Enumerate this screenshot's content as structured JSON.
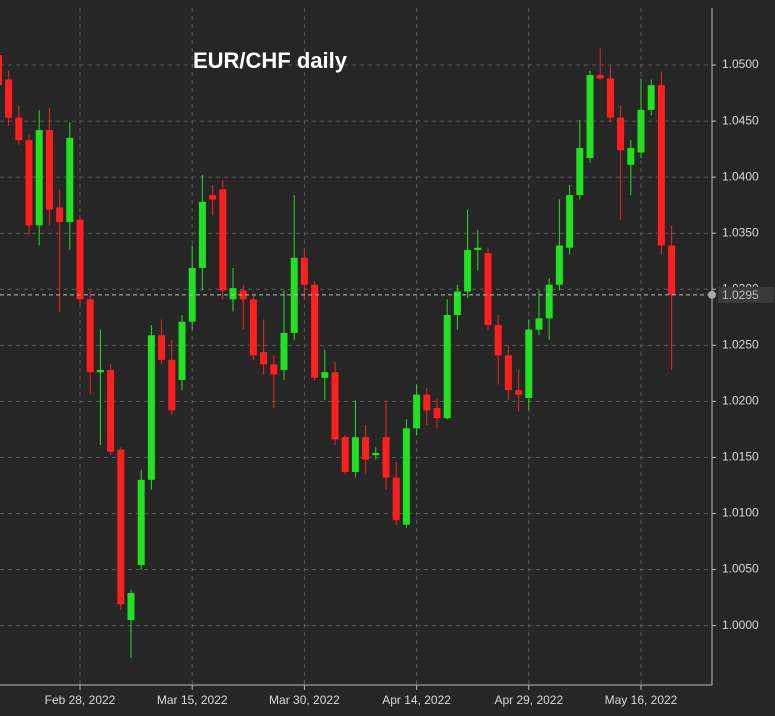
{
  "chart_data": {
    "type": "candlestick",
    "title": "EUR/CHF daily",
    "categories": [
      null,
      null,
      null,
      null,
      null,
      null,
      null,
      null,
      "Feb 28, 2022",
      null,
      null,
      null,
      null,
      null,
      null,
      null,
      null,
      null,
      null,
      "Mar 15, 2022",
      null,
      null,
      null,
      null,
      null,
      null,
      null,
      null,
      null,
      null,
      "Mar 30, 2022",
      null,
      null,
      null,
      null,
      null,
      null,
      null,
      null,
      null,
      null,
      "Apr 14, 2022",
      null,
      null,
      null,
      null,
      null,
      null,
      null,
      null,
      null,
      null,
      "Apr 29, 2022",
      null,
      null,
      null,
      null,
      null,
      null,
      null,
      null,
      null,
      null,
      "May 16, 2022",
      null,
      null,
      null
    ],
    "open": [
      1.0509,
      1.0487,
      1.0453,
      1.0433,
      1.0357,
      1.0442,
      1.0373,
      1.036,
      1.0362,
      1.0291,
      1.0226,
      1.0228,
      1.0157,
      1.0005,
      1.0054,
      1.013,
      1.0259,
      1.0237,
      1.0219,
      1.0271,
      1.0319,
      1.0384,
      1.0389,
      1.0291,
      1.0299,
      1.0291,
      1.0244,
      1.0233,
      1.0228,
      1.0261,
      1.0328,
      1.0304,
      1.0221,
      1.0226,
      1.0168,
      1.0137,
      1.0168,
      1.0152,
      1.0168,
      1.0132,
      1.009,
      1.0176,
      1.0206,
      1.0194,
      1.0185,
      1.0277,
      1.0298,
      1.0335,
      1.0332,
      1.0268,
      1.0241,
      1.021,
      1.0203,
      1.0264,
      1.0274,
      1.0304,
      1.0337,
      1.0384,
      1.0417,
      1.0491,
      1.0488,
      1.0453,
      1.0411,
      1.0422,
      1.046,
      1.0482,
      1.0339
    ],
    "high": [
      1.0513,
      1.0495,
      1.0464,
      1.0438,
      1.046,
      1.0462,
      1.0389,
      1.0449,
      1.0366,
      1.0299,
      1.0264,
      1.0233,
      1.0159,
      1.0032,
      1.0139,
      1.0268,
      1.0273,
      1.0255,
      1.0277,
      1.0339,
      1.0402,
      1.0393,
      1.0397,
      1.0319,
      1.0304,
      1.0295,
      1.0273,
      1.0241,
      1.0299,
      1.0384,
      1.0335,
      1.0307,
      1.0246,
      1.0235,
      1.017,
      1.0201,
      1.0179,
      1.0159,
      1.0201,
      1.0146,
      1.0184,
      1.0215,
      1.0212,
      1.0203,
      1.0291,
      1.0304,
      1.0371,
      1.0353,
      1.0337,
      1.0277,
      1.025,
      1.0228,
      1.0273,
      1.0299,
      1.031,
      1.038,
      1.0393,
      1.0451,
      1.0495,
      1.0515,
      1.05,
      1.0464,
      1.0433,
      1.0488,
      1.0487,
      1.0494,
      1.0357
    ],
    "low": [
      1.0478,
      1.0446,
      1.0429,
      1.0348,
      1.0339,
      1.0357,
      1.028,
      1.0335,
      1.0286,
      1.0206,
      1.0161,
      1.0152,
      1.0014,
      0.9971,
      1.005,
      1.0121,
      1.0233,
      1.0188,
      1.021,
      1.0264,
      1.0299,
      1.0366,
      1.0291,
      1.028,
      1.0264,
      1.0237,
      1.0224,
      1.0194,
      1.0219,
      1.0255,
      1.0291,
      1.0219,
      1.0201,
      1.0161,
      1.0135,
      1.0132,
      1.0135,
      1.0148,
      1.0121,
      1.009,
      1.0087,
      1.017,
      1.0179,
      1.0176,
      1.0184,
      1.0264,
      1.0292,
      1.0317,
      1.0264,
      1.0215,
      1.0201,
      1.0191,
      1.0192,
      1.0259,
      1.0255,
      1.0299,
      1.0331,
      1.038,
      1.0413,
      1.0487,
      1.0449,
      1.0362,
      1.0384,
      1.0417,
      1.0455,
      1.0331,
      1.0228
    ],
    "close": [
      1.0482,
      1.0453,
      1.0433,
      1.0357,
      1.0442,
      1.0371,
      1.036,
      1.0435,
      1.0291,
      1.0226,
      1.0228,
      1.0155,
      1.0019,
      1.0029,
      1.013,
      1.0259,
      1.0237,
      1.0192,
      1.0271,
      1.0319,
      1.0378,
      1.038,
      1.0299,
      1.0301,
      1.0291,
      1.0241,
      1.0233,
      1.0224,
      1.0261,
      1.0328,
      1.0304,
      1.0221,
      1.0226,
      1.0166,
      1.0137,
      1.0168,
      1.0148,
      1.0154,
      1.0132,
      1.0094,
      1.0176,
      1.0206,
      1.0192,
      1.0185,
      1.0277,
      1.0298,
      1.0335,
      1.0337,
      1.0268,
      1.0241,
      1.021,
      1.0206,
      1.0264,
      1.0274,
      1.0304,
      1.0339,
      1.0384,
      1.0426,
      1.0491,
      1.0488,
      1.0453,
      1.0424,
      1.0426,
      1.046,
      1.0482,
      1.0339,
      1.0295
    ],
    "up_color": "#22e022",
    "down_color": "#ff1f1f",
    "ylim": [
      0.9947,
      1.0558
    ],
    "yticks": [
      {
        "value": 1,
        "label": "1.0000"
      },
      {
        "value": 1.005,
        "label": "1.0050"
      },
      {
        "value": 1.01,
        "label": "1.0100"
      },
      {
        "value": 1.015,
        "label": "1.0150"
      },
      {
        "value": 1.02,
        "label": "1.0200"
      },
      {
        "value": 1.025,
        "label": "1.0250"
      },
      {
        "value": 1.03,
        "label": "1.0300"
      },
      {
        "value": 1.035,
        "label": "1.0350"
      },
      {
        "value": 1.04,
        "label": "1.0400"
      },
      {
        "value": 1.045,
        "label": "1.0450"
      },
      {
        "value": 1.05,
        "label": "1.0500"
      }
    ],
    "grid": true,
    "current_price": 1.0295
  }
}
